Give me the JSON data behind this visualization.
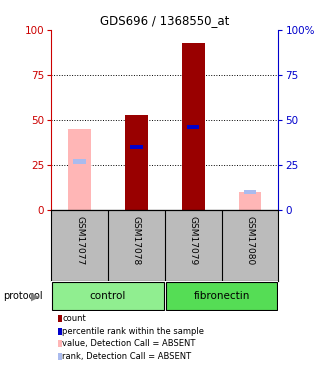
{
  "title": "GDS696 / 1368550_at",
  "samples": [
    "GSM17077",
    "GSM17078",
    "GSM17079",
    "GSM17080"
  ],
  "groups": [
    "control",
    "control",
    "fibronectin",
    "fibronectin"
  ],
  "absent": [
    true,
    false,
    false,
    true
  ],
  "bar_values": [
    45,
    53,
    93,
    10
  ],
  "rank_values": [
    27,
    35,
    46,
    10
  ],
  "bar_color_present": "#990000",
  "bar_color_absent": "#FFB6B6",
  "rank_color_present": "#0000CC",
  "rank_color_absent": "#AABBEE",
  "bar_width": 0.4,
  "ylim": [
    0,
    100
  ],
  "yticks": [
    0,
    25,
    50,
    75,
    100
  ],
  "group_colors": {
    "control": "#90EE90",
    "fibronectin": "#55DD55"
  },
  "legend_items": [
    {
      "label": "count",
      "color": "#990000"
    },
    {
      "label": "percentile rank within the sample",
      "color": "#0000CC"
    },
    {
      "label": "value, Detection Call = ABSENT",
      "color": "#FFB6B6"
    },
    {
      "label": "rank, Detection Call = ABSENT",
      "color": "#AABBEE"
    }
  ],
  "left_axis_color": "#CC0000",
  "right_axis_color": "#0000CC",
  "tick_area_bg": "#BBBBBB"
}
